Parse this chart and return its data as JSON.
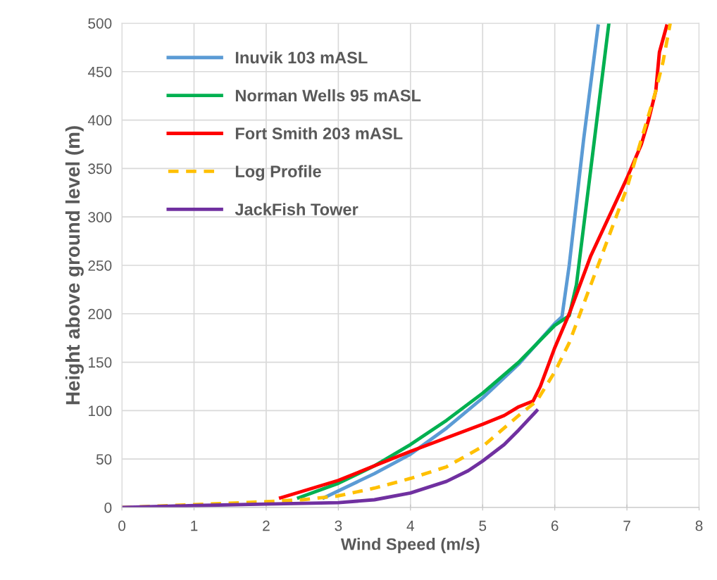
{
  "chart_data": {
    "type": "line",
    "xlabel": "Wind Speed (m/s)",
    "ylabel": "Height above ground level (m)",
    "xlim": [
      0,
      8
    ],
    "xticks": [
      0,
      1,
      2,
      3,
      4,
      5,
      6,
      7,
      8
    ],
    "ylim": [
      0,
      500
    ],
    "yticks": [
      0,
      50,
      100,
      150,
      200,
      250,
      300,
      350,
      400,
      450,
      500
    ],
    "grid": true,
    "legend": "top left",
    "marker": "none",
    "line_style": "solid",
    "series": [
      {
        "name": "Inuvik 103 mASL",
        "color": "#5b9bd5",
        "x": [
          2.8,
          3.5,
          4,
          4.5,
          5,
          5.5,
          6,
          6.1,
          6.2,
          6.4,
          6.6
        ],
        "values": [
          10,
          35,
          55,
          82,
          113,
          148,
          190,
          197,
          250,
          380,
          497
        ]
      },
      {
        "name": "Norman Wells 95 mASL",
        "color": "#00b050",
        "x": [
          2.45,
          3,
          3.5,
          4,
          4.5,
          5,
          5.5,
          6,
          6.2,
          6.3,
          6.5,
          6.75
        ],
        "values": [
          10,
          25,
          43,
          65,
          90,
          118,
          150,
          188,
          198,
          230,
          350,
          500
        ]
      },
      {
        "name": "Fort Smith 203 mASL",
        "color": "#ff0000",
        "x": [
          2.2,
          3,
          3.5,
          4,
          4.5,
          5,
          5.3,
          5.5,
          5.7,
          5.8,
          6,
          6.2,
          6.5,
          7,
          7.2,
          7.3,
          7.4,
          7.45,
          7.55
        ],
        "values": [
          10,
          28,
          43,
          58,
          72,
          86,
          95,
          104,
          110,
          125,
          165,
          200,
          260,
          340,
          375,
          400,
          430,
          470,
          497
        ]
      },
      {
        "name": "Log Profile",
        "color": "#ffc000",
        "line_style": "dashed",
        "x": [
          0,
          1,
          2,
          2.5,
          3,
          3.5,
          4,
          4.5,
          5,
          5.5,
          5.75,
          6,
          6.2,
          6.5,
          6.8,
          7,
          7.2,
          7.4,
          7.5,
          7.6
        ],
        "values": [
          0,
          3,
          6,
          8,
          12,
          20,
          30,
          42,
          63,
          95,
          110,
          140,
          170,
          230,
          290,
          330,
          380,
          430,
          460,
          500
        ]
      },
      {
        "name": "JackFish Tower",
        "color": "#7030a0",
        "x": [
          0,
          1,
          2,
          3,
          3.5,
          4,
          4.5,
          4.8,
          5,
          5.3,
          5.5,
          5.75
        ],
        "values": [
          0,
          2,
          3.5,
          5,
          8,
          15,
          27,
          38,
          48,
          65,
          80,
          100
        ]
      }
    ]
  }
}
